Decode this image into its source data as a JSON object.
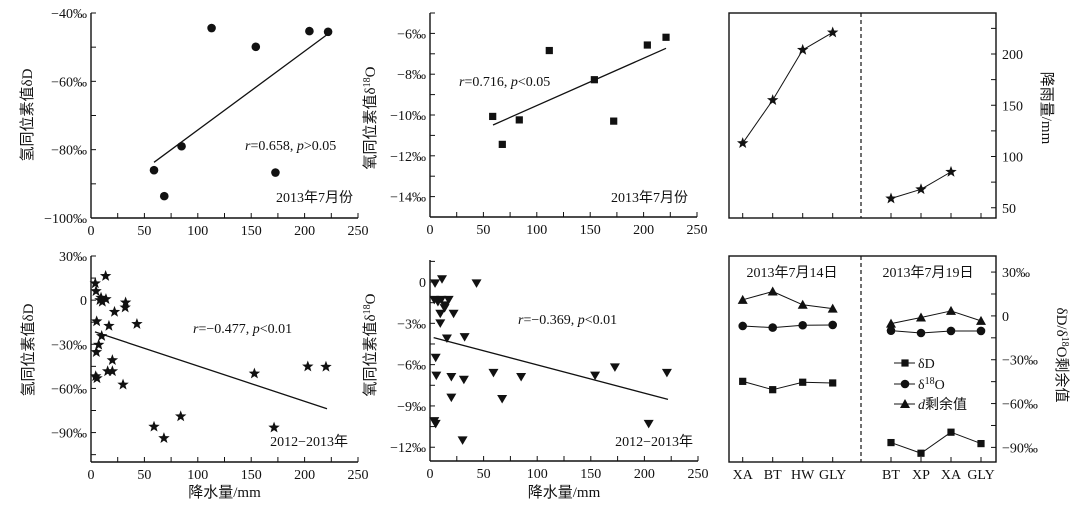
{
  "colors": {
    "ink": "#111111",
    "background": "#ffffff"
  },
  "chart_data": [
    {
      "type": "scatter",
      "panel": "top-left",
      "marker": "circle",
      "xlim": [
        0,
        250
      ],
      "ylim": [
        -100,
        -40
      ],
      "x_tick_values": [
        0,
        50,
        100,
        150,
        200,
        250
      ],
      "x_tick_labels": [
        "0",
        "50",
        "100",
        "150",
        "200",
        "250"
      ],
      "y_tick_values": [
        -100,
        -80,
        -60,
        -40
      ],
      "y_tick_labels": [
        "−100‰",
        "−80‰",
        "−60‰",
        "−40‰"
      ],
      "ylabel_parts": [
        "氢同位素值δD"
      ],
      "x": [
        59,
        68.6,
        84.8,
        112.9,
        154.3,
        172.7,
        204.5,
        222
      ],
      "y": [
        -86.0,
        -93.6,
        -79.0,
        -44.4,
        -49.9,
        -86.7,
        -45.3,
        -45.5
      ],
      "trendline": {
        "x": [
          59,
          222
        ],
        "y": [
          -83.7,
          -46.1
        ]
      },
      "annotation": {
        "r": "r",
        "r_value": "=0.658, ",
        "p": "p",
        "p_value": ">0.05"
      },
      "period_label": "2013年7月份"
    },
    {
      "type": "scatter",
      "panel": "top-middle",
      "marker": "square",
      "xlim": [
        0,
        250
      ],
      "ylim": [
        -15,
        -5
      ],
      "x_tick_values": [
        0,
        50,
        100,
        150,
        200,
        250
      ],
      "x_tick_labels": [
        "0",
        "50",
        "100",
        "150",
        "200",
        "250"
      ],
      "y_tick_values": [
        -14,
        -12,
        -10,
        -8,
        -6
      ],
      "y_tick_labels": [
        "−14‰",
        "−12‰",
        "−10‰",
        "−8‰",
        "−6‰"
      ],
      "ylabel_parts": [
        "氧同位素值δ",
        "18",
        "O"
      ],
      "x": [
        58.7,
        67.7,
        83.6,
        111.7,
        153.9,
        172,
        203.5,
        221
      ],
      "y": [
        -10.07,
        -11.44,
        -10.24,
        -6.84,
        -8.27,
        -10.3,
        -6.57,
        -6.19
      ],
      "trendline": {
        "x": [
          59,
          221
        ],
        "y": [
          -10.49,
          -6.73
        ]
      },
      "annotation": {
        "r": "r",
        "r_value": "=0.716, ",
        "p": "p",
        "p_value": "<0.05"
      },
      "period_label": "2013年7月份"
    },
    {
      "type": "line",
      "panel": "top-right",
      "marker": "star",
      "ylim": [
        40,
        240
      ],
      "y_axis_side": "right",
      "y_tick_values": [
        50,
        100,
        150,
        200
      ],
      "y_tick_labels": [
        "50",
        "100",
        "150",
        "200"
      ],
      "ylabel_parts": [
        "降雨量/mm"
      ],
      "groups": [
        {
          "values": [
            113,
            155,
            204,
            221
          ]
        },
        {
          "values": [
            59,
            68,
            85,
            null
          ]
        }
      ]
    },
    {
      "type": "scatter",
      "panel": "bottom-left",
      "marker": "star",
      "xlim": [
        0,
        250
      ],
      "ylim": [
        -110,
        30
      ],
      "x_tick_values": [
        0,
        50,
        100,
        150,
        200,
        250
      ],
      "x_tick_labels": [
        "0",
        "50",
        "100",
        "150",
        "200",
        "250"
      ],
      "y_tick_values": [
        -90,
        -60,
        -30,
        0,
        30
      ],
      "y_tick_labels": [
        "−90‰",
        "−60‰",
        "−30‰",
        "0",
        "30‰"
      ],
      "xlabel": "降水量/mm",
      "ylabel_parts": [
        "氢同位素值δD"
      ],
      "x": [
        4,
        4.7,
        13.7,
        9.4,
        10.6,
        14,
        8.4,
        32.4,
        32,
        22,
        5.3,
        16.8,
        43,
        10,
        7.2,
        5,
        20,
        15.6,
        20,
        4.4,
        5.6,
        30,
        59,
        68.3,
        84,
        153,
        171.4,
        203,
        220
      ],
      "y": [
        11.4,
        6.1,
        16.4,
        1.6,
        -1.1,
        0.7,
        0,
        -1.6,
        -5,
        -8,
        -14.4,
        -17.5,
        -16.2,
        -24.4,
        -30.3,
        -35.3,
        -40.8,
        -48.3,
        -48.3,
        -51.7,
        -53.1,
        -57.4,
        -86,
        -93.8,
        -79,
        -49.9,
        -86.6,
        -45.1,
        -45.3
      ],
      "trendline": {
        "x": [
          3.7,
          221
        ],
        "y": [
          -21.6,
          -73.8
        ]
      },
      "annotation": {
        "r": "r",
        "r_value": "=−0.477, ",
        "p": "p",
        "p_value": "<0.01"
      },
      "period_label": "2012−2013年"
    },
    {
      "type": "scatter",
      "panel": "bottom-middle",
      "marker": "triangle-down",
      "xlim": [
        0,
        250
      ],
      "ylim": [
        -13,
        1.6
      ],
      "x_tick_values": [
        0,
        50,
        100,
        150,
        200,
        250
      ],
      "x_tick_labels": [
        "0",
        "50",
        "100",
        "150",
        "200",
        "250"
      ],
      "y_tick_values": [
        -12,
        -9,
        -6,
        -3,
        0
      ],
      "y_tick_labels": [
        "−12‰",
        "−9‰",
        "−6‰",
        "−3‰",
        "0"
      ],
      "xlabel": "降水量/mm",
      "ylabel_parts": [
        "氧同位素值δ",
        "18",
        "O"
      ],
      "x": [
        4.7,
        11.2,
        43.4,
        4,
        7.4,
        10.5,
        17.4,
        14.3,
        13.6,
        9.6,
        22,
        9.6,
        15.8,
        32.3,
        5.3,
        5.9,
        19.9,
        31.6,
        59.2,
        85,
        67.3,
        19.9,
        4,
        5.3,
        30.4,
        154,
        172.5,
        221,
        204
      ],
      "y": [
        -0.1,
        0.2,
        -0.1,
        -1.3,
        -1.45,
        -1.3,
        -1.3,
        -1.7,
        -1.9,
        -2.3,
        -2.3,
        -3.0,
        -4.1,
        -4.0,
        -5.5,
        -6.8,
        -6.9,
        -7.1,
        -6.6,
        -6.9,
        -8.5,
        -8.4,
        -10.1,
        -10.3,
        -11.5,
        -6.8,
        -6.2,
        -6.6,
        -10.3
      ],
      "trendline": {
        "x": [
          3.4,
          222
        ],
        "y": [
          -4.04,
          -8.52
        ]
      },
      "annotation": {
        "r": "r",
        "r_value": "=−0.369, ",
        "p": "p",
        "p_value": "<0.01"
      },
      "period_label": "2012−2013年"
    },
    {
      "type": "line",
      "panel": "bottom-right",
      "ylim": [
        -100,
        41
      ],
      "y_axis_side": "right",
      "y_tick_values": [
        -90,
        -60,
        -30,
        0,
        30
      ],
      "y_tick_labels": [
        "−90‰",
        "−60‰",
        "−30‰",
        "0",
        "30‰"
      ],
      "ylabel_parts": [
        "δD/δ",
        "18",
        "O剩余值"
      ],
      "legend_position": "center-right",
      "groups": [
        {
          "date": "2013年7月14日",
          "categories": [
            "XA",
            "BT",
            "HW",
            "GLY"
          ]
        },
        {
          "date": "2013年7月19日",
          "categories": [
            "BT",
            "XP",
            "XA",
            "GLY"
          ]
        }
      ],
      "series": [
        {
          "name_parts": [
            "δD"
          ],
          "marker": "square",
          "values": [
            [
              -44.8,
              -50.5,
              -45.4,
              -45.9
            ],
            [
              -86.7,
              -94,
              -79.6,
              -87.4
            ]
          ]
        },
        {
          "name_parts": [
            "δ",
            "18",
            "O"
          ],
          "marker": "circle",
          "values": [
            [
              -6.9,
              -8.0,
              -6.4,
              -6.2
            ],
            [
              -10.1,
              -11.7,
              -10.3,
              -10.3
            ]
          ]
        },
        {
          "name_parts": [
            "d",
            "剩余值"
          ],
          "marker": "triangle-up",
          "values": [
            [
              11,
              16.7,
              7.6,
              5
            ],
            [
              -5.3,
              -1.1,
              3.4,
              -3.4
            ]
          ]
        }
      ]
    }
  ]
}
